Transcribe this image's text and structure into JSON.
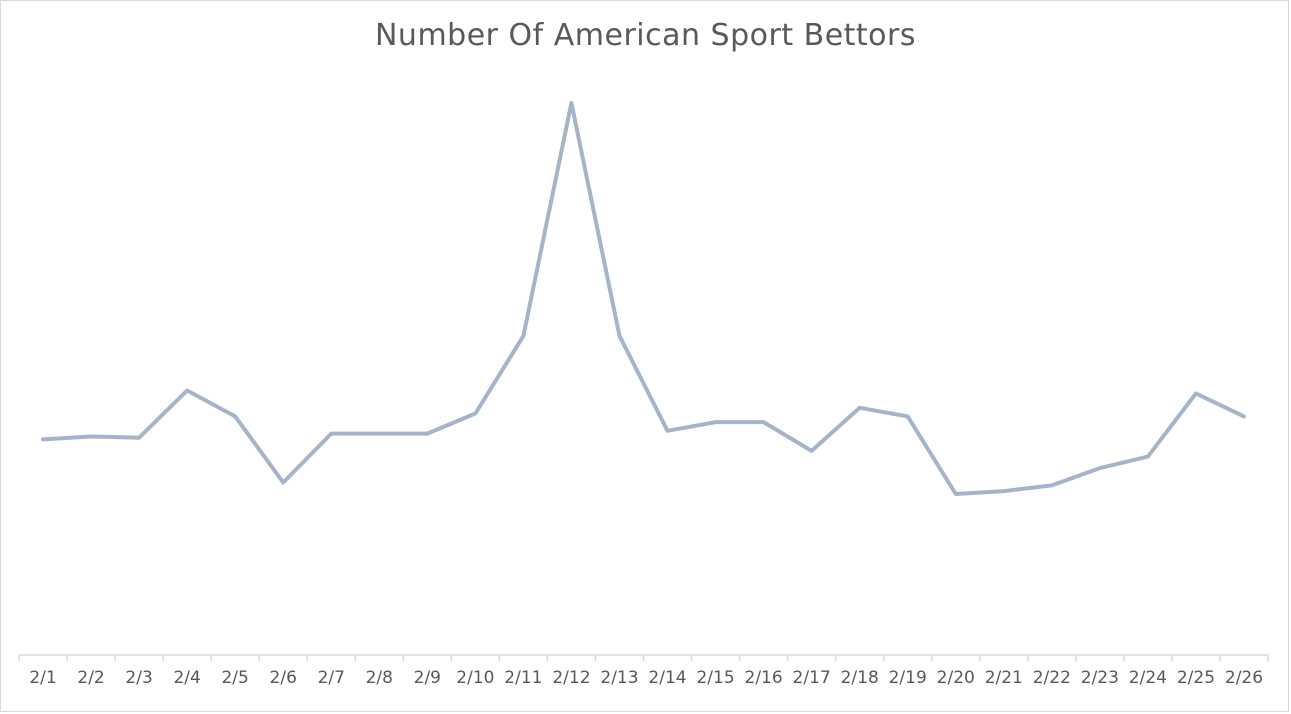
{
  "chart_data": {
    "type": "line",
    "title": "Number Of American Sport Bettors",
    "xlabel": "",
    "ylabel": "",
    "categories": [
      "2/1",
      "2/2",
      "2/3",
      "2/4",
      "2/5",
      "2/6",
      "2/7",
      "2/8",
      "2/9",
      "2/10",
      "2/11",
      "2/12",
      "2/13",
      "2/14",
      "2/15",
      "2/16",
      "2/17",
      "2/18",
      "2/19",
      "2/20",
      "2/21",
      "2/22",
      "2/23",
      "2/24",
      "2/25",
      "2/26"
    ],
    "series": [
      {
        "values": [
          37.5,
          38,
          37.8,
          46,
          41.5,
          30,
          38.5,
          38.5,
          38.5,
          42,
          55.5,
          96,
          55.5,
          39,
          40.5,
          40.5,
          35.5,
          43,
          41.5,
          28,
          28.5,
          29.5,
          32.5,
          34.5,
          45.5,
          41.5
        ]
      }
    ],
    "ylim": [
      0,
      100
    ],
    "y_axis_visible": false,
    "grid": false,
    "legend": "none",
    "line_color": "#a5b4c8",
    "axis_color": "#d9d9d9"
  }
}
